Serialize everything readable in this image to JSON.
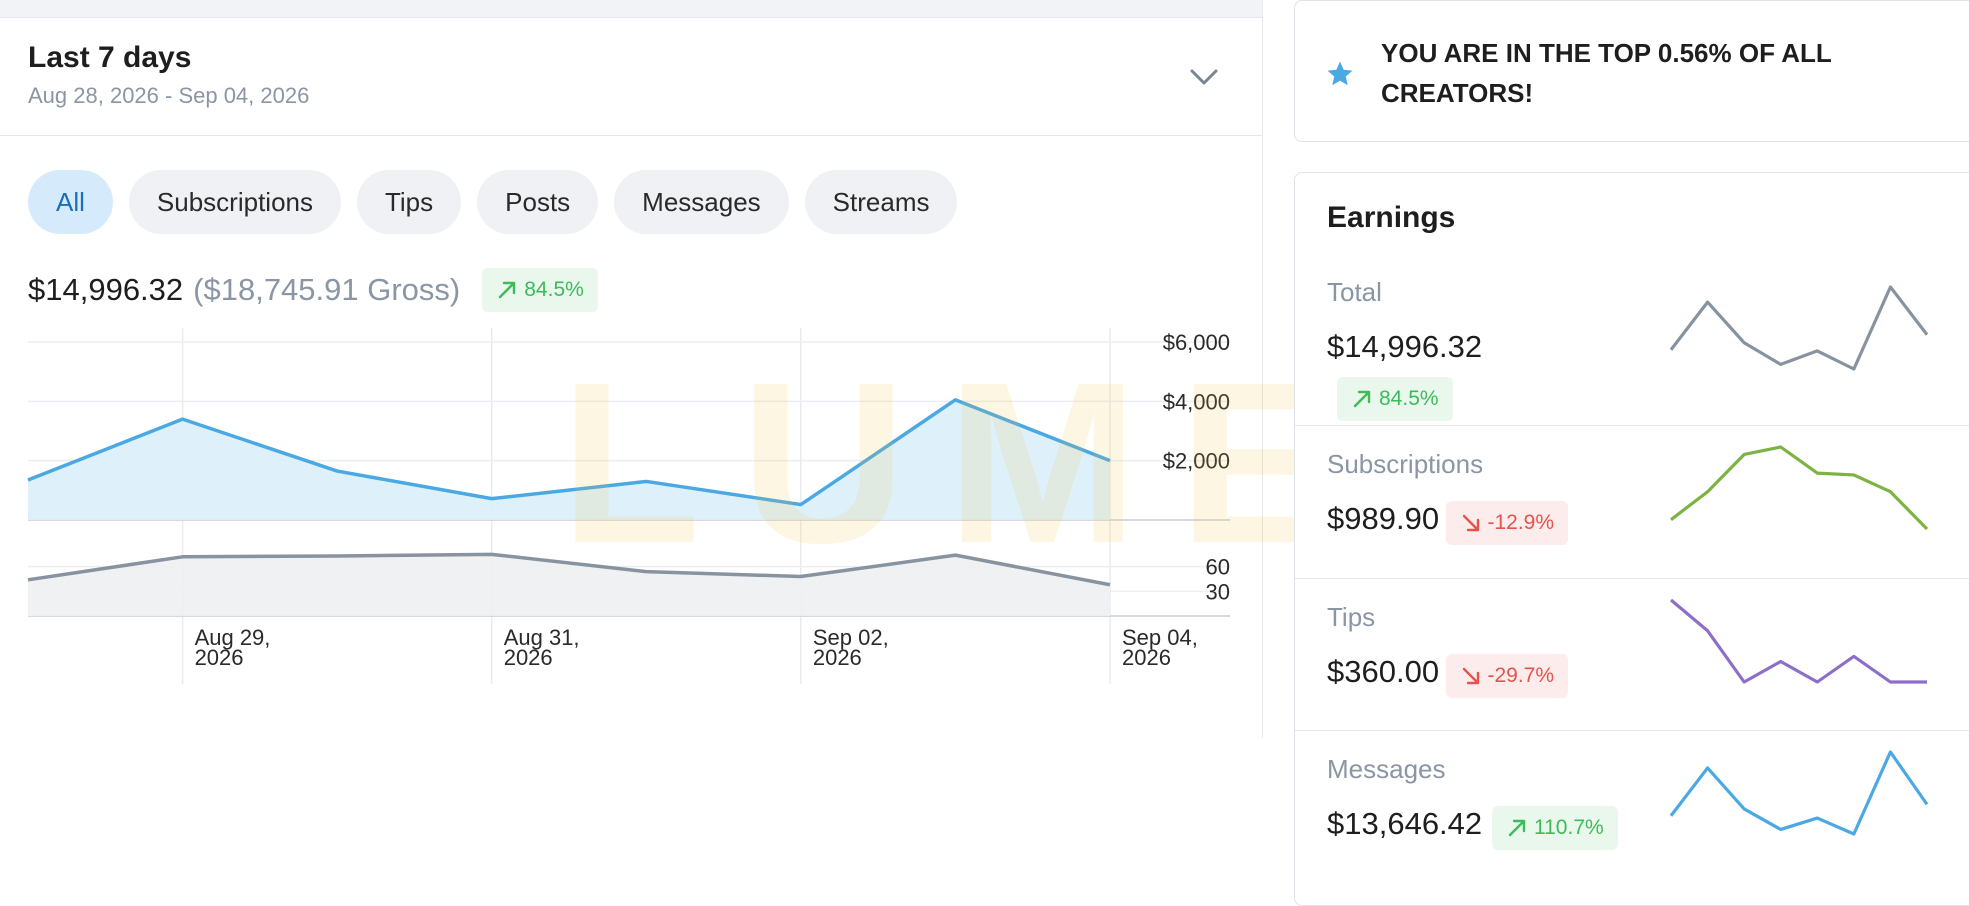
{
  "period": {
    "title": "Last 7 days",
    "range": "Aug 28, 2026 - Sep 04, 2026"
  },
  "filters": [
    "All",
    "Subscriptions",
    "Tips",
    "Posts",
    "Messages",
    "Streams"
  ],
  "active_filter": "All",
  "summary": {
    "net": "$14,996.32",
    "gross": "($18,745.91 Gross)",
    "change": "84.5%",
    "change_direction": "up"
  },
  "watermark": "LUMEN",
  "chart_data": {
    "type": "area",
    "x": [
      "Aug 28, 2026",
      "Aug 29, 2026",
      "Aug 30, 2026",
      "Aug 31, 2026",
      "Sep 01, 2026",
      "Sep 02, 2026",
      "Sep 03, 2026",
      "Sep 04, 2026"
    ],
    "x_tick_labels": [
      {
        "date": "Aug 29, 2026",
        "line1": "Aug 29,",
        "line2": "2026"
      },
      {
        "date": "Aug 31, 2026",
        "line1": "Aug 31,",
        "line2": "2026"
      },
      {
        "date": "Sep 02, 2026",
        "line1": "Sep 02,",
        "line2": "2026"
      },
      {
        "date": "Sep 04, 2026",
        "line1": "Sep 04,",
        "line2": "2026"
      }
    ],
    "panels": [
      {
        "y_ticks": [
          "$6,000",
          "$4,000",
          "$2,000"
        ],
        "y_tick_values": [
          6000,
          4000,
          2000
        ],
        "ylim": [
          0,
          6000
        ],
        "line_color": "#4aa8e3",
        "fill_color": "#daeffb",
        "series": [
          {
            "values": [
              1350,
              3400,
              1650,
              720,
              1300,
              520,
              4050,
              2000
            ]
          }
        ]
      },
      {
        "y_ticks": [
          "60",
          "30"
        ],
        "y_tick_values": [
          60,
          30
        ],
        "ylim": [
          0,
          90
        ],
        "line_color": "#8893a0",
        "fill_color": "#eef0f2",
        "series": [
          {
            "values": [
              44,
              72,
              73,
              75,
              54,
              48,
              74,
              38
            ]
          }
        ]
      }
    ],
    "grid": true
  },
  "banner": {
    "text": "YOU ARE IN THE TOP 0.56% OF ALL CREATORS!",
    "icon": "star-icon",
    "icon_color": "#4aa8e3"
  },
  "earnings": {
    "title": "Earnings",
    "items": [
      {
        "label": "Total",
        "amount": "$14,996.32",
        "change": "84.5%",
        "direction": "up",
        "color": "#8893a0",
        "trend": [
          1350,
          3400,
          1650,
          720,
          1300,
          520,
          4050,
          2000
        ]
      },
      {
        "label": "Subscriptions",
        "amount": "$989.90",
        "change": "-12.9%",
        "direction": "down",
        "color": "#7cb342",
        "trend": [
          110,
          140,
          180,
          188,
          160,
          158,
          140,
          100
        ]
      },
      {
        "label": "Tips",
        "amount": "$360.00",
        "change": "-29.7%",
        "direction": "down",
        "color": "#8b6fc9",
        "trend": [
          100,
          70,
          20,
          40,
          20,
          45,
          20,
          20
        ]
      },
      {
        "label": "Messages",
        "amount": "$13,646.42",
        "change": "110.7%",
        "direction": "up",
        "color": "#4aa8e3",
        "trend": [
          1200,
          3300,
          1500,
          600,
          1100,
          400,
          4000,
          1700
        ]
      }
    ]
  }
}
